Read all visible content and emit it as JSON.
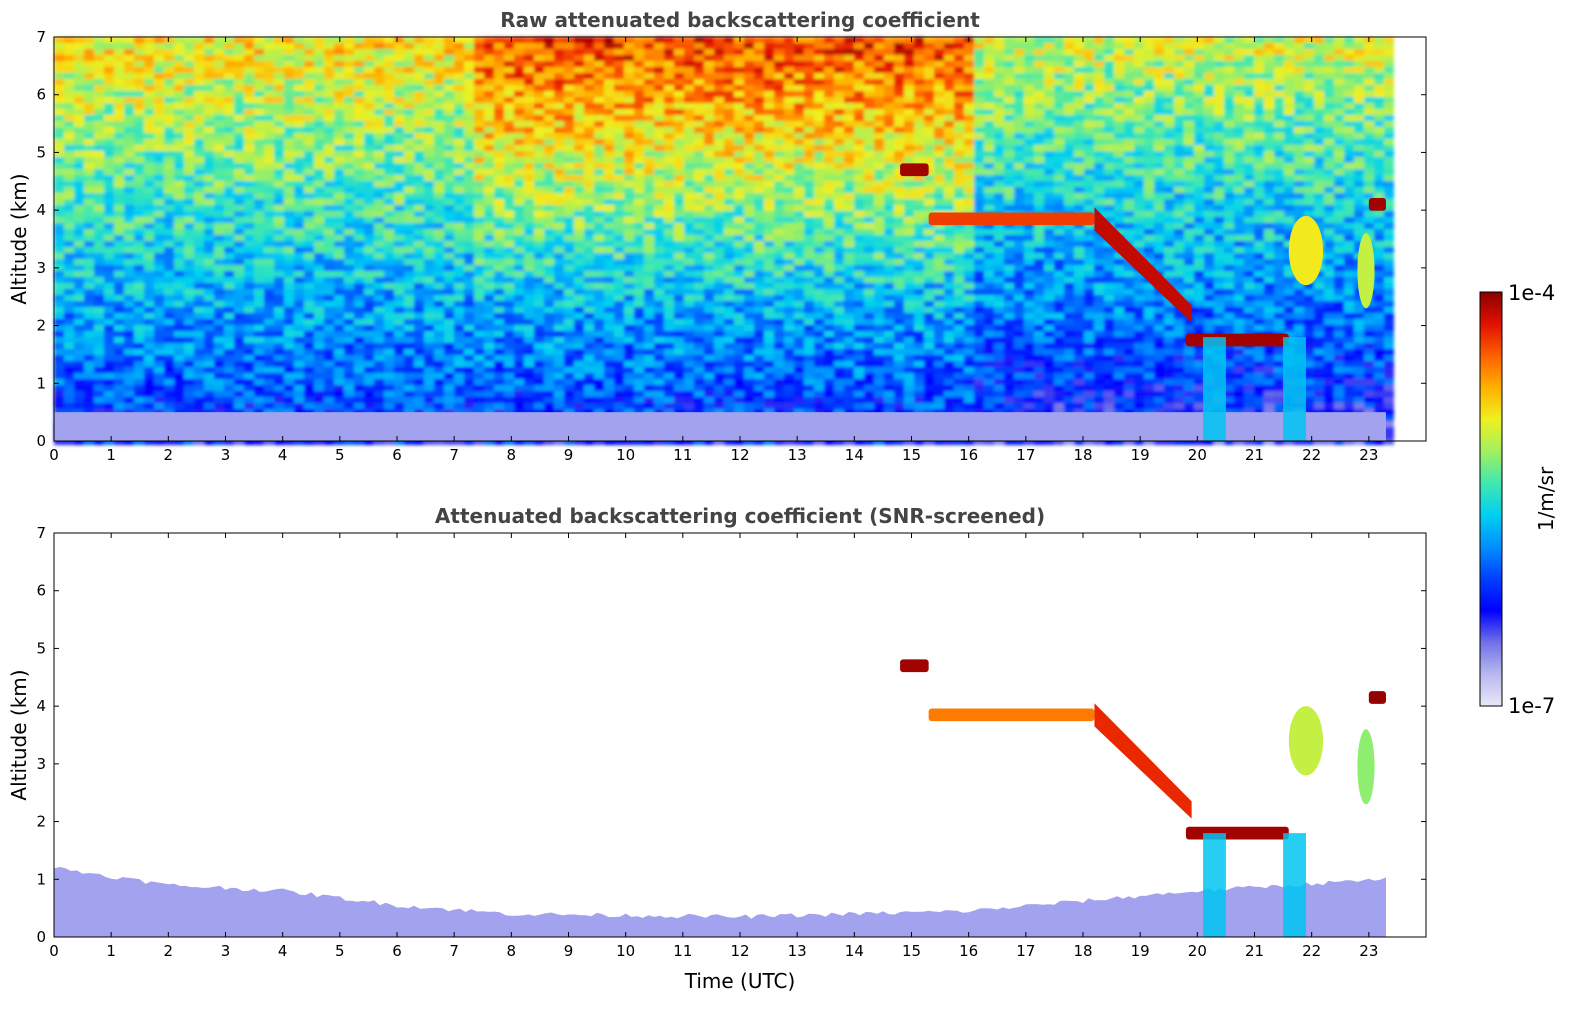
{
  "chart_data": [
    {
      "type": "heatmap",
      "title": "Raw attenuated backscattering coefficient",
      "xlabel": "",
      "ylabel": "Altitude (km)",
      "xlim": [
        0,
        24
      ],
      "ylim": [
        0,
        7
      ],
      "x_ticks": [
        "0",
        "1",
        "2",
        "3",
        "4",
        "5",
        "6",
        "7",
        "8",
        "9",
        "10",
        "11",
        "12",
        "13",
        "14",
        "15",
        "16",
        "17",
        "18",
        "19",
        "20",
        "21",
        "22",
        "23"
      ],
      "y_ticks": [
        "0",
        "1",
        "2",
        "3",
        "4",
        "5",
        "6",
        "7"
      ],
      "data_end_time": 23.3,
      "screened": false,
      "features": [
        {
          "kind": "aerosol_boundary_layer",
          "t_start": 0,
          "t_end": 23.3,
          "alt_top": 0.5,
          "level": 0.1
        },
        {
          "kind": "cloud_layer",
          "t_start": 15.3,
          "t_end": 18.2,
          "alt": 3.85,
          "level": 0.88
        },
        {
          "kind": "descending_cloud",
          "t_start": 18.2,
          "t_end": 19.9,
          "alt_start": 3.9,
          "alt_end": 2.2,
          "level": 0.95
        },
        {
          "kind": "cloud_layer",
          "t_start": 19.8,
          "t_end": 21.6,
          "alt": 1.75,
          "level": 0.98
        },
        {
          "kind": "cloud_layer",
          "t_start": 14.8,
          "t_end": 15.3,
          "alt": 4.7,
          "level": 0.98
        },
        {
          "kind": "cloud_layer",
          "t_start": 23.0,
          "t_end": 23.3,
          "alt": 4.1,
          "level": 0.98
        },
        {
          "kind": "cloud_patch",
          "t_start": 21.6,
          "t_end": 22.2,
          "alt_bottom": 2.7,
          "alt_top": 3.9,
          "level": 0.7
        },
        {
          "kind": "cloud_patch",
          "t_start": 22.8,
          "t_end": 23.1,
          "alt_bottom": 2.3,
          "alt_top": 3.6,
          "level": 0.65
        },
        {
          "kind": "precipitation",
          "t_start": 20.1,
          "t_end": 20.5,
          "alt_top": 1.8,
          "level": 0.45
        },
        {
          "kind": "precipitation",
          "t_start": 21.5,
          "t_end": 21.9,
          "alt_top": 1.8,
          "level": 0.45
        }
      ]
    },
    {
      "type": "heatmap",
      "title": "Attenuated backscattering coefficient (SNR-screened)",
      "xlabel": "Time (UTC)",
      "ylabel": "Altitude (km)",
      "xlim": [
        0,
        24
      ],
      "ylim": [
        0,
        7
      ],
      "x_ticks": [
        "0",
        "1",
        "2",
        "3",
        "4",
        "5",
        "6",
        "7",
        "8",
        "9",
        "10",
        "11",
        "12",
        "13",
        "14",
        "15",
        "16",
        "17",
        "18",
        "19",
        "20",
        "21",
        "22",
        "23"
      ],
      "y_ticks": [
        "0",
        "1",
        "2",
        "3",
        "4",
        "5",
        "6",
        "7"
      ],
      "data_end_time": 23.3,
      "screened": true,
      "features": [
        {
          "kind": "aerosol_boundary_layer",
          "t_start": 0,
          "t_end": 23.3,
          "alt_top_profile": [
            [
              0,
              1.2
            ],
            [
              2,
              0.9
            ],
            [
              4,
              0.8
            ],
            [
              6,
              0.55
            ],
            [
              8,
              0.4
            ],
            [
              12,
              0.35
            ],
            [
              16,
              0.45
            ],
            [
              20,
              0.8
            ],
            [
              23.3,
              1.0
            ]
          ],
          "level": 0.1
        },
        {
          "kind": "cloud_layer",
          "t_start": 15.3,
          "t_end": 18.2,
          "alt": 3.85,
          "level": 0.82
        },
        {
          "kind": "descending_cloud",
          "t_start": 18.2,
          "t_end": 19.9,
          "alt_start": 3.9,
          "alt_end": 2.2,
          "level": 0.9
        },
        {
          "kind": "cloud_layer",
          "t_start": 19.8,
          "t_end": 21.6,
          "alt": 1.8,
          "level": 0.98
        },
        {
          "kind": "cloud_layer",
          "t_start": 14.8,
          "t_end": 15.3,
          "alt": 4.7,
          "level": 0.98
        },
        {
          "kind": "cloud_layer",
          "t_start": 23.0,
          "t_end": 23.3,
          "alt": 4.15,
          "level": 0.99
        },
        {
          "kind": "cloud_patch",
          "t_start": 21.6,
          "t_end": 22.2,
          "alt_bottom": 2.8,
          "alt_top": 4.0,
          "level": 0.65
        },
        {
          "kind": "cloud_patch",
          "t_start": 22.8,
          "t_end": 23.1,
          "alt_bottom": 2.3,
          "alt_top": 3.6,
          "level": 0.6
        },
        {
          "kind": "precipitation",
          "t_start": 20.1,
          "t_end": 20.5,
          "alt_top": 1.8,
          "level": 0.45
        },
        {
          "kind": "precipitation",
          "t_start": 21.5,
          "t_end": 21.9,
          "alt_top": 1.8,
          "level": 0.45
        }
      ]
    }
  ],
  "colorbar": {
    "label": "1/m/sr",
    "max_label": "1e-4",
    "min_label": "1e-7",
    "colors": [
      "#e8e8f8",
      "#b8b8f0",
      "#7070e8",
      "#0000ff",
      "#0040ff",
      "#0090ff",
      "#00d0f0",
      "#40e8b0",
      "#a0f060",
      "#f0f020",
      "#ffb000",
      "#ff6000",
      "#e01000",
      "#8b0000"
    ]
  }
}
